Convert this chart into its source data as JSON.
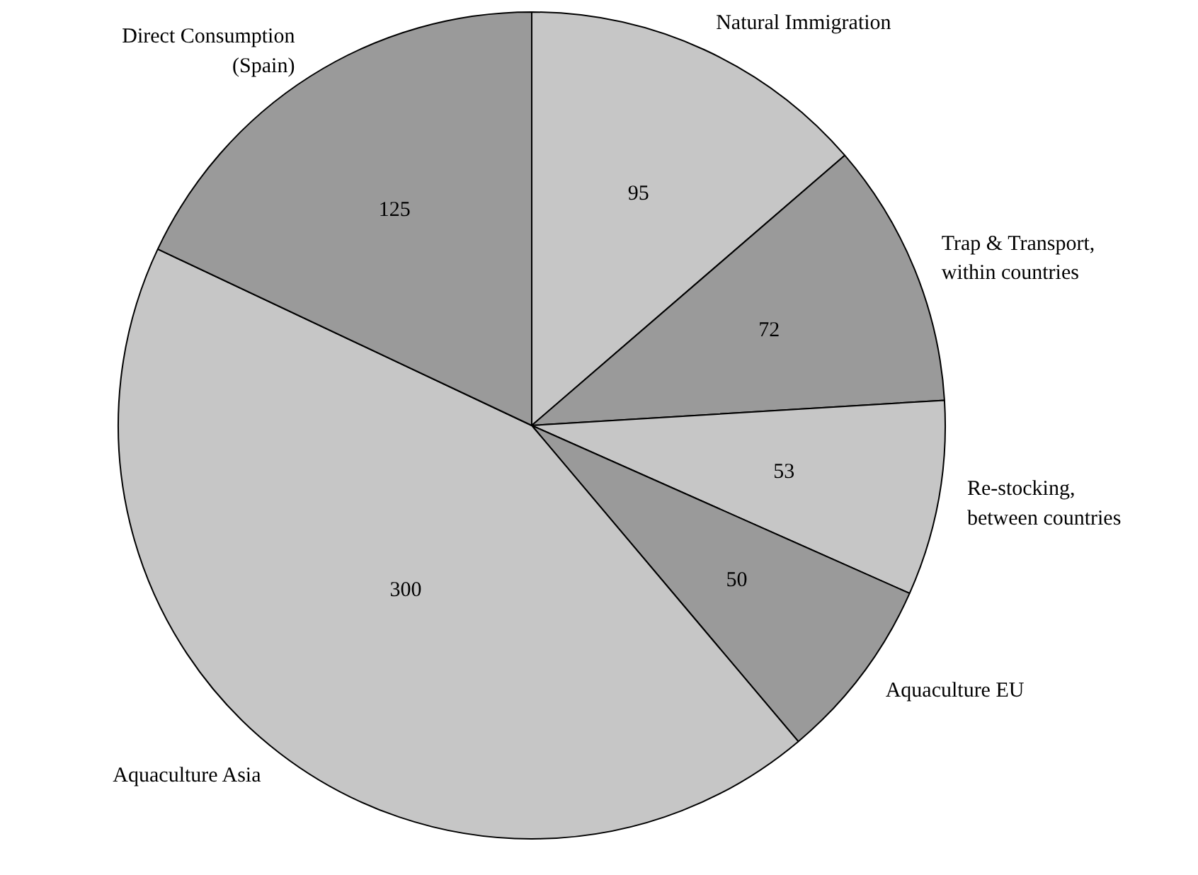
{
  "chart_data": {
    "type": "pie",
    "categories": [
      "Natural Immigration",
      "Trap & Transport,\nwithin countries",
      "Re-stocking,\nbetween countries",
      "Aquaculture EU",
      "Aquaculture Asia",
      "Direct Consumption\n(Spain)"
    ],
    "values": [
      95,
      72,
      53,
      50,
      300,
      125
    ],
    "colors": [
      "#c6c6c6",
      "#9a9a9a",
      "#c6c6c6",
      "#9a9a9a",
      "#c6c6c6",
      "#9a9a9a"
    ],
    "data_labels": true
  }
}
